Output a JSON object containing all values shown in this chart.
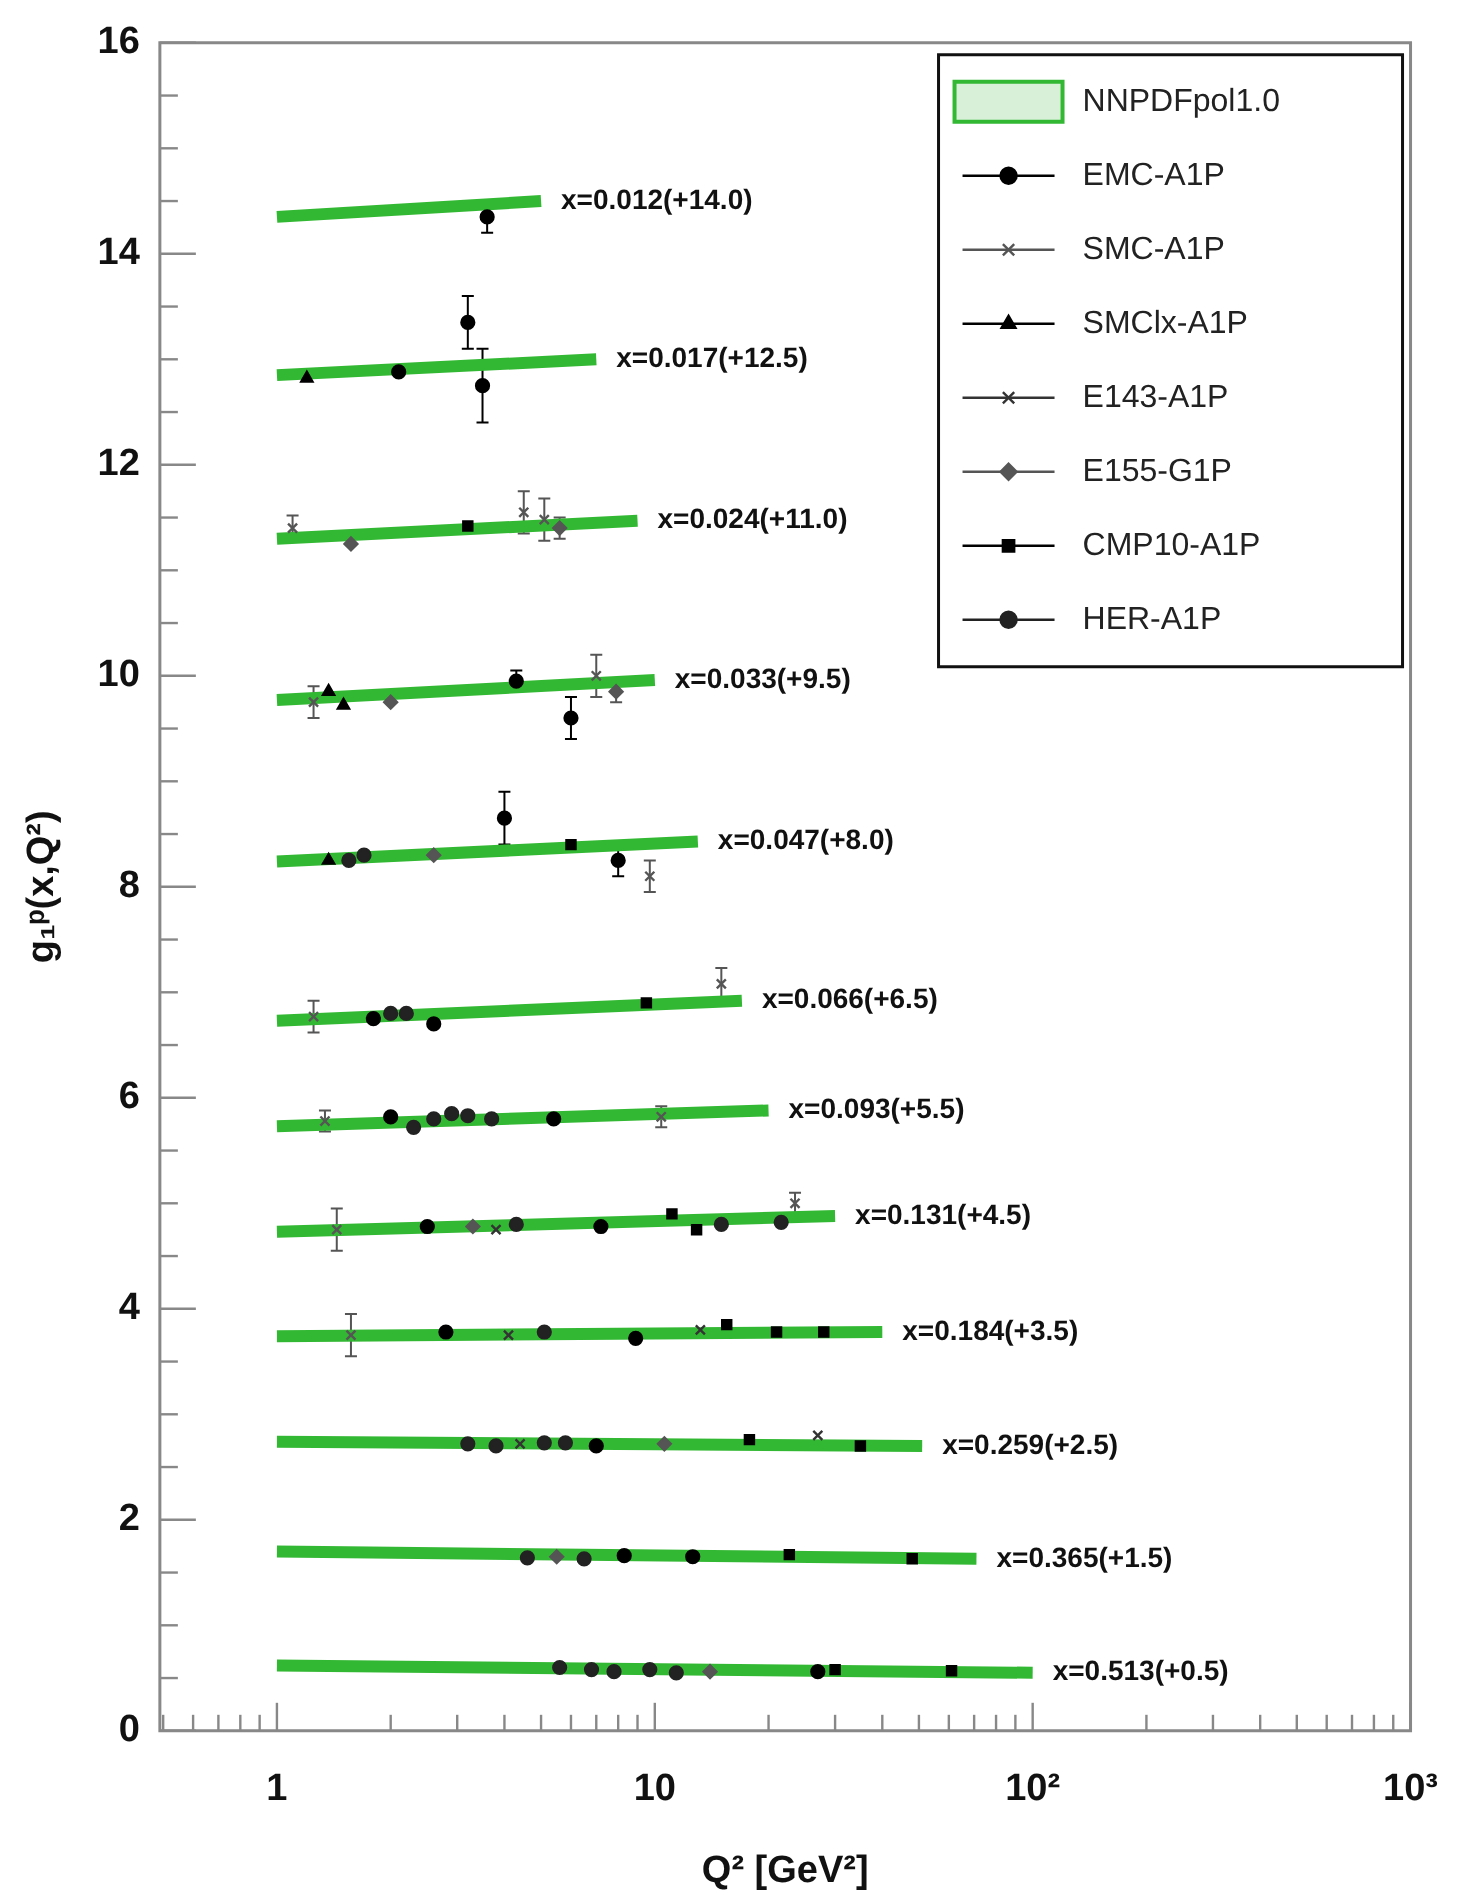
{
  "chart_data": {
    "type": "scatter",
    "xlabel": "Q² [GeV²]",
    "ylabel": "g₁ᵖ(x,Q²)",
    "log": "x",
    "grid": false,
    "legend": "top right",
    "xlim": [
      0.49,
      1000
    ],
    "ylim": [
      0,
      16
    ],
    "xticks": [
      {
        "value": 0.5,
        "label": null
      },
      {
        "value": 0.6,
        "label": null
      },
      {
        "value": 0.7,
        "label": null
      },
      {
        "value": 0.8,
        "label": null
      },
      {
        "value": 0.9,
        "label": null
      },
      1,
      {
        "value": 2,
        "label": null
      },
      {
        "value": 3,
        "label": null
      },
      {
        "value": 4,
        "label": null
      },
      {
        "value": 5,
        "label": null
      },
      {
        "value": 6,
        "label": null
      },
      {
        "value": 7,
        "label": null
      },
      {
        "value": 8,
        "label": null
      },
      {
        "value": 9,
        "label": null
      },
      10,
      {
        "value": 20,
        "label": null
      },
      {
        "value": 30,
        "label": null
      },
      {
        "value": 40,
        "label": null
      },
      {
        "value": 50,
        "label": null
      },
      {
        "value": 60,
        "label": null
      },
      {
        "value": 70,
        "label": null
      },
      {
        "value": 80,
        "label": null
      },
      {
        "value": 90,
        "label": null
      },
      {
        "value": 100,
        "label": "10²"
      },
      {
        "value": 200,
        "label": null
      },
      {
        "value": 300,
        "label": null
      },
      {
        "value": 400,
        "label": null
      },
      {
        "value": 500,
        "label": null
      },
      {
        "value": 600,
        "label": null
      },
      {
        "value": 700,
        "label": null
      },
      {
        "value": 800,
        "label": null
      },
      {
        "value": 900,
        "label": null
      },
      {
        "value": 1000,
        "label": "10³"
      }
    ],
    "yticks": [
      0,
      {
        "value": 0.5,
        "label": null
      },
      {
        "value": 1,
        "label": null
      },
      {
        "value": 1.5,
        "label": null
      },
      2,
      {
        "value": 2.5,
        "label": null
      },
      {
        "value": 3,
        "label": null
      },
      {
        "value": 3.5,
        "label": null
      },
      4,
      {
        "value": 4.5,
        "label": null
      },
      {
        "value": 5,
        "label": null
      },
      {
        "value": 5.5,
        "label": null
      },
      6,
      {
        "value": 6.5,
        "label": null
      },
      {
        "value": 7,
        "label": null
      },
      {
        "value": 7.5,
        "label": null
      },
      8,
      {
        "value": 8.5,
        "label": null
      },
      {
        "value": 9,
        "label": null
      },
      {
        "value": 9.5,
        "label": null
      },
      10,
      {
        "value": 10.5,
        "label": null
      },
      {
        "value": 11,
        "label": null
      },
      {
        "value": 11.5,
        "label": null
      },
      12,
      {
        "value": 12.5,
        "label": null
      },
      {
        "value": 13,
        "label": null
      },
      {
        "value": 13.5,
        "label": null
      },
      14,
      {
        "value": 14.5,
        "label": null
      },
      {
        "value": 15,
        "label": null
      },
      {
        "value": 15.5,
        "label": null
      },
      16
    ],
    "series": [
      {
        "type": "line",
        "name": "NNPDFpol1.0",
        "color": "#33b833",
        "x": [
          1,
          5
        ],
        "values": [
          14.35,
          14.5
        ]
      },
      {
        "type": "line",
        "color": "#33b833",
        "x": [
          1,
          7
        ],
        "values": [
          12.85,
          13.0
        ]
      },
      {
        "type": "line",
        "color": "#33b833",
        "x": [
          1,
          9
        ],
        "values": [
          11.3,
          11.47
        ]
      },
      {
        "type": "line",
        "color": "#33b833",
        "x": [
          1,
          10
        ],
        "values": [
          9.77,
          9.96
        ]
      },
      {
        "type": "line",
        "color": "#33b833",
        "x": [
          1,
          13
        ],
        "values": [
          8.24,
          8.43
        ]
      },
      {
        "type": "line",
        "color": "#33b833",
        "x": [
          1,
          17
        ],
        "values": [
          6.73,
          6.92
        ]
      },
      {
        "type": "line",
        "color": "#33b833",
        "x": [
          1,
          20
        ],
        "values": [
          5.73,
          5.88
        ]
      },
      {
        "type": "line",
        "color": "#33b833",
        "x": [
          1,
          30
        ],
        "values": [
          4.73,
          4.88
        ]
      },
      {
        "type": "line",
        "color": "#33b833",
        "x": [
          1,
          40
        ],
        "values": [
          3.74,
          3.78
        ]
      },
      {
        "type": "line",
        "color": "#33b833",
        "x": [
          1,
          51
        ],
        "values": [
          2.74,
          2.7
        ]
      },
      {
        "type": "line",
        "color": "#33b833",
        "x": [
          1,
          71
        ],
        "values": [
          1.7,
          1.63
        ]
      },
      {
        "type": "line",
        "color": "#33b833",
        "x": [
          1,
          100
        ],
        "values": [
          0.62,
          0.55
        ]
      },
      {
        "name": "EMC-A1P",
        "color": "#000000",
        "marker": "circle",
        "x": [
          3.6,
          2.1,
          3.2,
          3.5,
          4.3,
          6.0,
          4.0,
          8.0,
          1.8,
          2.6,
          2.0,
          5.4,
          2.5,
          7.2,
          2.8,
          8.9,
          7.0,
          8.3,
          12.6,
          27
        ],
        "values": [
          14.35,
          12.88,
          13.35,
          12.75,
          9.95,
          9.6,
          8.65,
          8.25,
          6.75,
          6.7,
          5.82,
          5.8,
          4.78,
          4.78,
          3.78,
          3.72,
          2.7,
          1.66,
          1.65,
          0.56
        ],
        "errors": [
          0.15,
          null,
          0.25,
          0.35,
          0.1,
          0.2,
          0.25,
          0.15,
          null,
          null,
          null,
          null,
          null,
          null,
          null,
          null,
          null,
          null,
          null,
          null
        ]
      },
      {
        "name": "SMC-A1P",
        "color": "#555555",
        "marker": "cross",
        "x": [
          1.1,
          1.25,
          1.25,
          1.34,
          1.44,
          1.57,
          4.5,
          5.1,
          7.0,
          9.7,
          15,
          10.4,
          23.5
        ],
        "values": [
          11.4,
          9.75,
          6.77,
          5.78,
          4.75,
          3.75,
          11.55,
          11.48,
          10.0,
          8.1,
          7.08,
          5.82,
          5.0
        ],
        "errors": [
          0.12,
          0.15,
          0.15,
          0.1,
          0.2,
          0.2,
          0.2,
          0.2,
          0.2,
          0.15,
          0.15,
          0.1,
          0.1
        ]
      },
      {
        "name": "SMClx-A1P",
        "color": "#000000",
        "marker": "triangle",
        "x": [
          1.2,
          1.37,
          1.5,
          1.37
        ],
        "values": [
          12.82,
          9.85,
          9.72,
          8.25
        ]
      },
      {
        "name": "E143-A1P",
        "color": "#333333",
        "marker": "cross",
        "x": [
          3.8,
          4.4,
          27,
          4.1,
          13.2
        ],
        "values": [
          4.75,
          2.72,
          2.8,
          3.75,
          3.8
        ]
      },
      {
        "name": "E155-G1P",
        "color": "#555555",
        "marker": "diamond",
        "x": [
          1.57,
          2.0,
          2.6,
          7.9,
          5.6,
          3.3,
          10.6,
          5.5,
          14
        ],
        "values": [
          11.25,
          9.75,
          8.3,
          9.85,
          11.4,
          4.78,
          2.72,
          1.65,
          0.56
        ],
        "errors": [
          null,
          null,
          null,
          0.1,
          0.1,
          null,
          null,
          null,
          null
        ]
      },
      {
        "name": "CMP10-A1P",
        "color": "#000000",
        "marker": "square",
        "x": [
          3.2,
          11.1,
          12.9,
          15.5,
          17.8,
          35,
          22.7,
          48,
          61,
          30,
          9.5,
          6.0,
          21,
          28
        ],
        "values": [
          11.42,
          4.9,
          4.75,
          3.85,
          2.76,
          2.7,
          1.67,
          1.63,
          0.57,
          0.58,
          6.9,
          8.4,
          3.78,
          3.78
        ]
      },
      {
        "name": "HER-A1P",
        "color": "#222222",
        "marker": "circle",
        "x": [
          1.55,
          1.7,
          2.0,
          2.2,
          2.3,
          2.6,
          2.9,
          3.2,
          3.7,
          4.3,
          5.1,
          3.2,
          3.8,
          5.1,
          5.8,
          4.6,
          6.5,
          5.6,
          6.8,
          7.8,
          9.7,
          11.4,
          15,
          21.6
        ],
        "values": [
          8.25,
          8.3,
          6.8,
          6.8,
          5.72,
          5.8,
          5.85,
          5.83,
          5.8,
          4.8,
          3.78,
          2.72,
          2.7,
          2.73,
          2.73,
          1.64,
          1.63,
          0.6,
          0.58,
          0.56,
          0.58,
          0.55,
          4.8,
          4.82
        ]
      }
    ],
    "annotations": [
      {
        "text": "x=0.012(+14.0)",
        "x": 5,
        "y": 14.5
      },
      {
        "text": "x=0.017(+12.5)",
        "x": 7,
        "y": 13.0
      },
      {
        "text": "x=0.024(+11.0)",
        "x": 9,
        "y": 11.47
      },
      {
        "text": "x=0.033(+9.5)",
        "x": 10,
        "y": 9.96
      },
      {
        "text": "x=0.047(+8.0)",
        "x": 13,
        "y": 8.43
      },
      {
        "text": "x=0.066(+6.5)",
        "x": 17,
        "y": 6.92
      },
      {
        "text": "x=0.093(+5.5)",
        "x": 20,
        "y": 5.88
      },
      {
        "text": "x=0.131(+4.5)",
        "x": 30,
        "y": 4.88
      },
      {
        "text": "x=0.184(+3.5)",
        "x": 40,
        "y": 3.78
      },
      {
        "text": "x=0.259(+2.5)",
        "x": 51,
        "y": 2.7
      },
      {
        "text": "x=0.365(+1.5)",
        "x": 71,
        "y": 1.63
      },
      {
        "text": "x=0.513(+0.5)",
        "x": 100,
        "y": 0.55
      }
    ]
  }
}
